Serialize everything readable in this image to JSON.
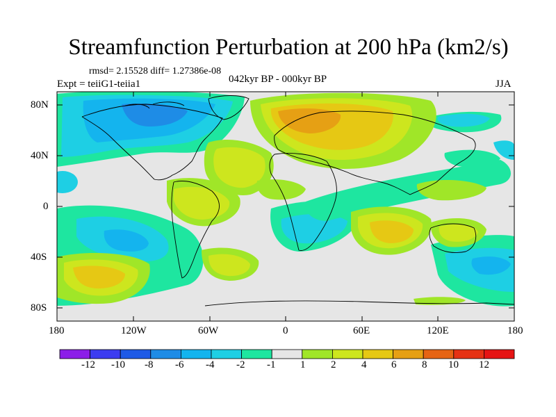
{
  "header": {
    "title": "Streamfunction Perturbation at 200 hPa (km2/s)",
    "rmsd_text": "rmsd= 2.15528 diff= 1.27386e-08",
    "period_text": "042kyr BP - 000kyr BP",
    "expt_text": "Expt = teiiG1-teiia1",
    "season": "JJA"
  },
  "axes": {
    "lat_labels": [
      "80N",
      "40N",
      "0",
      "40S",
      "80S"
    ],
    "lon_labels": [
      "180",
      "120W",
      "60W",
      "0",
      "60E",
      "120E",
      "180"
    ]
  },
  "colorbar": {
    "labels": [
      "-12",
      "-10",
      "-8",
      "-6",
      "-4",
      "-2",
      "-1",
      "1",
      "2",
      "4",
      "6",
      "8",
      "10",
      "12"
    ],
    "colors": [
      "#8c1ee8",
      "#3c3cf0",
      "#1e5ae6",
      "#1e8ce6",
      "#14b4ee",
      "#1ecfe4",
      "#1ee6a0",
      "#e6e6e6",
      "#a0e628",
      "#cde61e",
      "#e6c814",
      "#e6a014",
      "#e66414",
      "#e63214",
      "#e61414"
    ]
  },
  "colors": {
    "background_field": "#e6e6e6",
    "coast": "#000000"
  }
}
